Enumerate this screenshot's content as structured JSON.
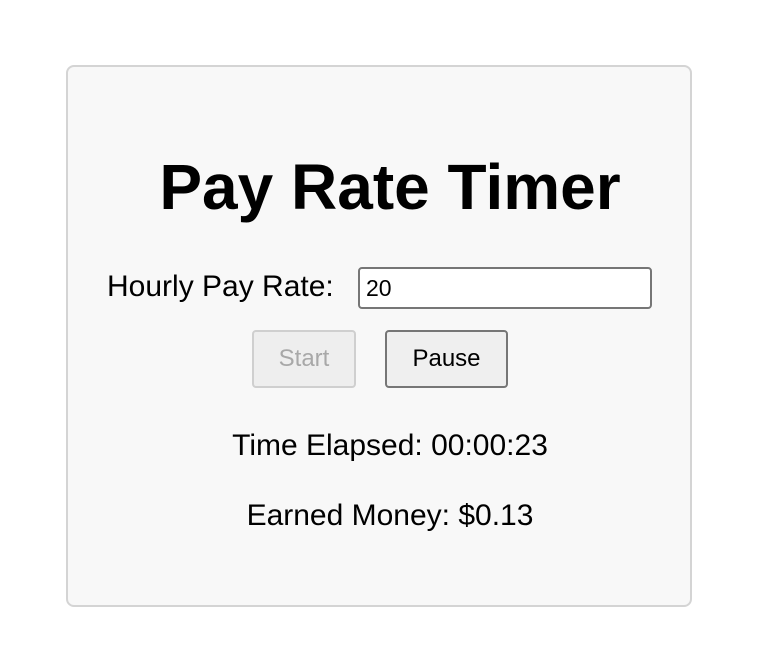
{
  "app": {
    "title": "Pay Rate Timer"
  },
  "rate": {
    "label": "Hourly Pay Rate:",
    "value": "20"
  },
  "controls": {
    "start_label": "Start",
    "start_disabled": true,
    "pause_label": "Pause"
  },
  "stats": {
    "elapsed_text": "Time Elapsed: 00:00:23",
    "earned_text": "Earned Money: $0.13"
  },
  "colors": {
    "card_background": "#f8f8f8",
    "card_border": "#d4d4d4",
    "disabled_text": "#a8a8a8"
  }
}
